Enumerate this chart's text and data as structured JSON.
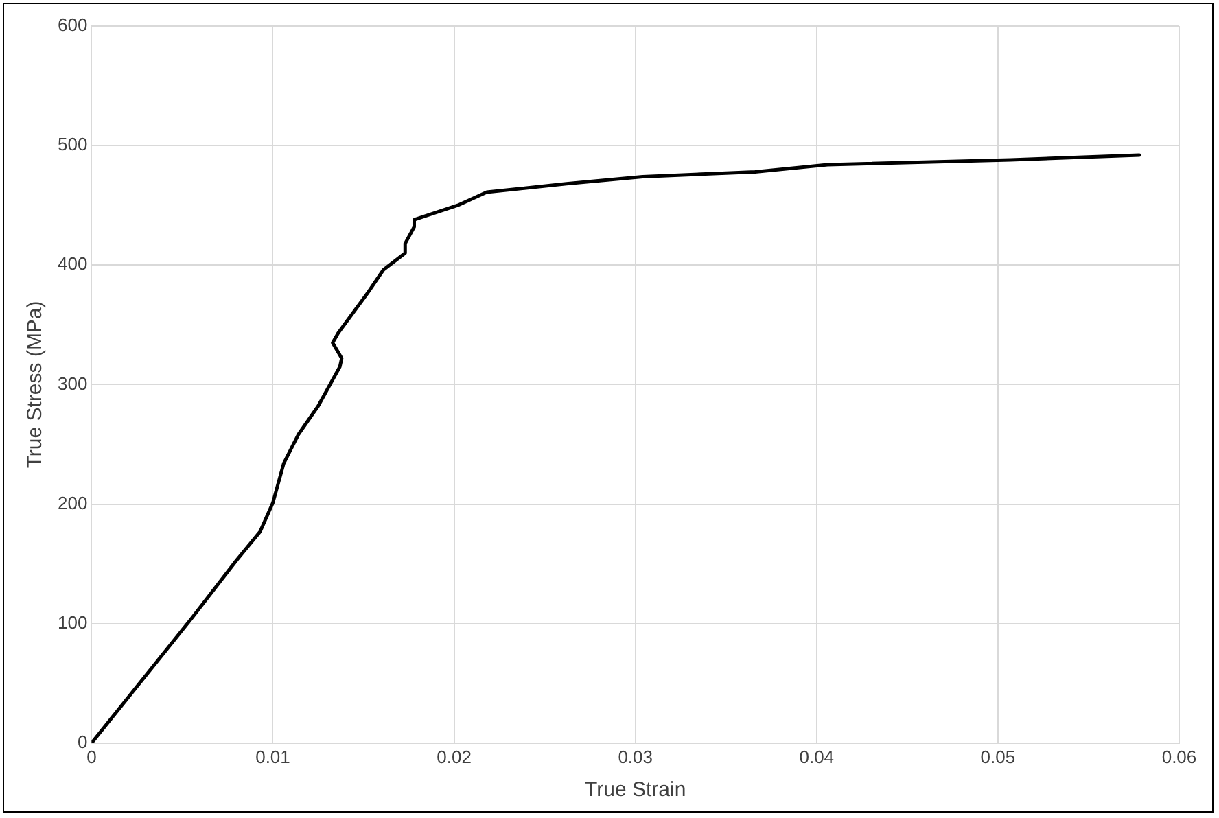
{
  "chart_data": {
    "type": "line",
    "xlabel": "True Strain",
    "ylabel": "True Stress (MPa)",
    "x": [
      0,
      0.0055,
      0.008,
      0.0093,
      0.01,
      0.0106,
      0.0114,
      0.0125,
      0.0137,
      0.0138,
      0.0133,
      0.0136,
      0.0152,
      0.0161,
      0.0173,
      0.0173,
      0.0178,
      0.0178,
      0.0202,
      0.0218,
      0.0262,
      0.0304,
      0.0366,
      0.0406,
      0.0507,
      0.0578
    ],
    "series": [
      {
        "color": "#000000",
        "values": [
          0,
          104,
          153,
          177,
          201,
          234,
          258,
          282,
          315,
          322,
          335,
          343,
          376,
          396,
          410,
          418,
          432,
          438,
          450,
          461,
          468,
          474,
          478,
          484,
          488,
          492
        ]
      }
    ],
    "xlim": [
      0,
      0.06
    ],
    "xticks": [
      0,
      0.01,
      0.02,
      0.03,
      0.04,
      0.05,
      0.06
    ],
    "ylim": [
      0,
      600
    ],
    "yticks": [
      0,
      100,
      200,
      300,
      400,
      500,
      600
    ],
    "grid": true,
    "legend": false,
    "marker": "none",
    "line_style": "solid"
  }
}
